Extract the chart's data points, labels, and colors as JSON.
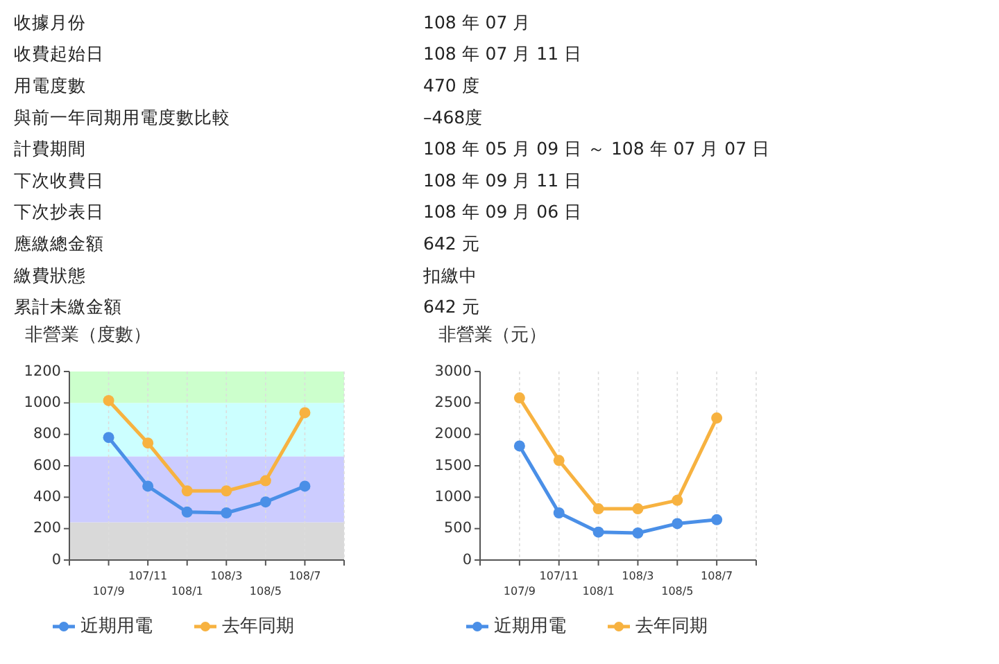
{
  "chart_data": [
    {
      "type": "other",
      "annotations": [
        "收據月份",
        "108 年 07 月",
        "收費起始日",
        "108 年 07 月 11 日",
        "用電度數",
        "470 度",
        "與前一年同期用電度數比較",
        "–468度",
        "計費期間",
        "108 年 05 月 09 日 ～ 108 年 07 月 07 日",
        "下次收費日",
        "108 年 09 月 11 日",
        "下次抄表日",
        "108 年 09 月 06 日",
        "應繳總金額",
        "642 元",
        "繳費狀態",
        "扣繳中",
        "累計未繳金額",
        "642 元"
      ]
    },
    {
      "type": "line",
      "title": "非營業（度數）",
      "categories": [
        "107/9",
        "107/11",
        "108/1",
        "108/3",
        "108/5",
        "108/7"
      ],
      "ylim": [
        0,
        1200
      ],
      "yticks": [
        0,
        200,
        400,
        600,
        800,
        1000,
        1200
      ],
      "grid": "x",
      "legend": "bottom",
      "marker": "circle",
      "bands": [
        {
          "axis": "y",
          "from": 0,
          "to": 240,
          "color": "#d9d9d9"
        },
        {
          "axis": "y",
          "from": 240,
          "to": 660,
          "color": "#ccccff"
        },
        {
          "axis": "y",
          "from": 660,
          "to": 1000,
          "color": "#ccffff"
        },
        {
          "axis": "y",
          "from": 1000,
          "to": 1200,
          "color": "#ccffcc"
        }
      ],
      "series": [
        {
          "name": "近期用電",
          "color": "#4a8fe7",
          "values": [
            780,
            470,
            305,
            300,
            370,
            470
          ]
        },
        {
          "name": "去年同期",
          "color": "#f7b240",
          "values": [
            1015,
            745,
            440,
            440,
            505,
            938
          ]
        }
      ]
    },
    {
      "type": "line",
      "title": "非營業（元）",
      "categories": [
        "107/9",
        "107/11",
        "108/1",
        "108/3",
        "108/5",
        "108/7"
      ],
      "ylim": [
        0,
        3000
      ],
      "yticks": [
        0,
        500,
        1000,
        1500,
        2000,
        2500,
        3000
      ],
      "grid": "x",
      "legend": "bottom",
      "marker": "circle",
      "series": [
        {
          "name": "近期用電",
          "color": "#4a8fe7",
          "values": [
            1815,
            750,
            445,
            430,
            580,
            642
          ]
        },
        {
          "name": "去年同期",
          "color": "#f7b240",
          "values": [
            2580,
            1585,
            815,
            815,
            950,
            2260
          ]
        }
      ]
    }
  ]
}
